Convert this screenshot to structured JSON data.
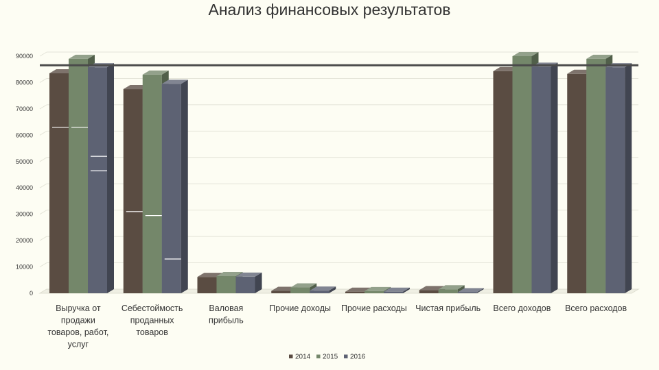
{
  "chart_data": {
    "type": "bar",
    "title": "Анализ финансовых результатов",
    "categories": [
      "Выручка от продажи товаров, работ, услуг",
      "Себестоймость проданных товаров",
      "Валовая прибыль",
      "Прочие доходы",
      "Прочие расходы",
      "Чистая прибыль",
      "Всего доходов",
      "Всего расходов"
    ],
    "category_lines": [
      [
        "Выручка от",
        "продажи",
        "товаров, работ,",
        "услуг"
      ],
      [
        "Себестоймость",
        "проданных",
        "товаров"
      ],
      [
        "Валовая",
        "прибыль"
      ],
      [
        "Прочие доходы"
      ],
      [
        "Прочие расходы"
      ],
      [
        "Чистая прибыль"
      ],
      [
        "Всего доходов"
      ],
      [
        "Всего расходов"
      ]
    ],
    "series": [
      {
        "name": "2014",
        "color": "#5a4c42",
        "values": [
          83500,
          77500,
          6200,
          900,
          600,
          1200,
          84300,
          83300
        ]
      },
      {
        "name": "2015",
        "color": "#74876a",
        "values": [
          89000,
          83000,
          6500,
          2200,
          800,
          1500,
          90000,
          89000
        ]
      },
      {
        "name": "2016",
        "color": "#5d6273",
        "values": [
          85800,
          79500,
          6300,
          1000,
          600,
          400,
          86000,
          85800
        ]
      }
    ],
    "ylim": [
      0,
      90000
    ],
    "yticks": [
      0,
      10000,
      20000,
      30000,
      40000,
      50000,
      60000,
      70000,
      80000,
      90000
    ],
    "reference_line": 85000,
    "markers": [
      {
        "category": 0,
        "series": 0,
        "value": 63000
      },
      {
        "category": 0,
        "series": 1,
        "value": 63000
      },
      {
        "category": 0,
        "series": 2,
        "value": 52000
      },
      {
        "category": 0,
        "series": 2,
        "value": 46500
      },
      {
        "category": 1,
        "series": 0,
        "value": 31000
      },
      {
        "category": 1,
        "series": 1,
        "value": 29500
      },
      {
        "category": 1,
        "series": 2,
        "value": 13000
      }
    ],
    "grid": true,
    "legend": "bottom"
  }
}
